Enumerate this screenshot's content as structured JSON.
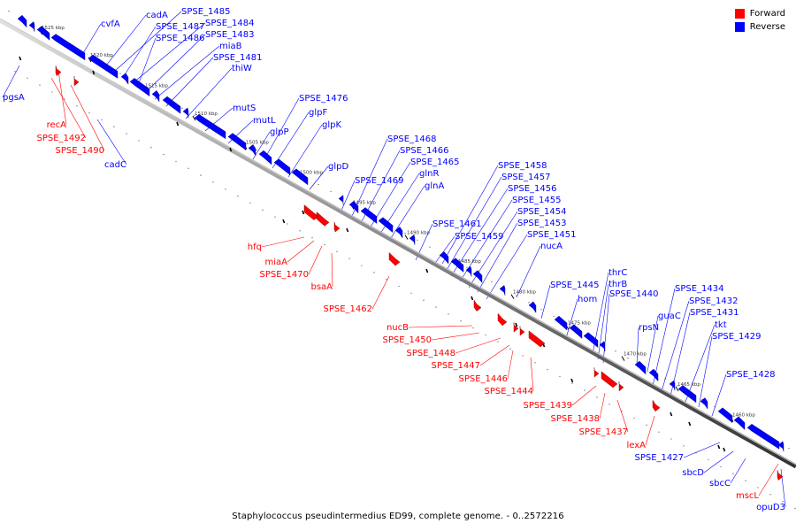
{
  "legend": {
    "forward": {
      "label": "Forward",
      "color": "#ff0000"
    },
    "reverse": {
      "label": "Reverse",
      "color": "#0000ff"
    }
  },
  "caption": "Staphylococcus pseudintermedius ED99, complete genome. - 0..2572216",
  "ticks": [
    "1525 kbp",
    "1520 kbp",
    "1515 kbp",
    "1510 kbp",
    "1505 kbp",
    "1500 kbp",
    "1495 kbp",
    "1490 kbp",
    "1485 kbp",
    "1480 kbp",
    "1475 kbp",
    "1470 kbp",
    "1465 kbp",
    "1460 kbp"
  ],
  "reverse_genes": [
    "pgsA",
    "cvfA",
    "cadA",
    "SPSE_1485",
    "SPSE_1487",
    "SPSE_1484",
    "SPSE_1486",
    "SPSE_1483",
    "miaB",
    "SPSE_1481",
    "thiW",
    "cadC",
    "mutS",
    "mutL",
    "SPSE_1476",
    "glpF",
    "glpP",
    "glpK",
    "glpD",
    "SPSE_1468",
    "SPSE_1466",
    "SPSE_1465",
    "SPSE_1469",
    "glnR",
    "glnA",
    "SPSE_1458",
    "SPSE_1457",
    "SPSE_1456",
    "SPSE_1455",
    "SPSE_1454",
    "SPSE_1453",
    "SPSE_1451",
    "SPSE_1461",
    "SPSE_1459",
    "nucA",
    "thrC",
    "thrB",
    "SPSE_1445",
    "hom",
    "SPSE_1440",
    "SPSE_1434",
    "SPSE_1432",
    "SPSE_1431",
    "guaC",
    "rpsN",
    "tkt",
    "SPSE_1429",
    "SPSE_1428",
    "SPSE_1427",
    "sbcD",
    "sbcC",
    "opuD3"
  ],
  "forward_genes": [
    "recA",
    "SPSE_1492",
    "SPSE_1490",
    "hfq",
    "miaA",
    "SPSE_1470",
    "bsaA",
    "SPSE_1462",
    "nucB",
    "SPSE_1450",
    "SPSE_1448",
    "SPSE_1447",
    "SPSE_1446",
    "SPSE_1444",
    "SPSE_1439",
    "SPSE_1438",
    "SPSE_1437",
    "lexA",
    "mscL"
  ]
}
